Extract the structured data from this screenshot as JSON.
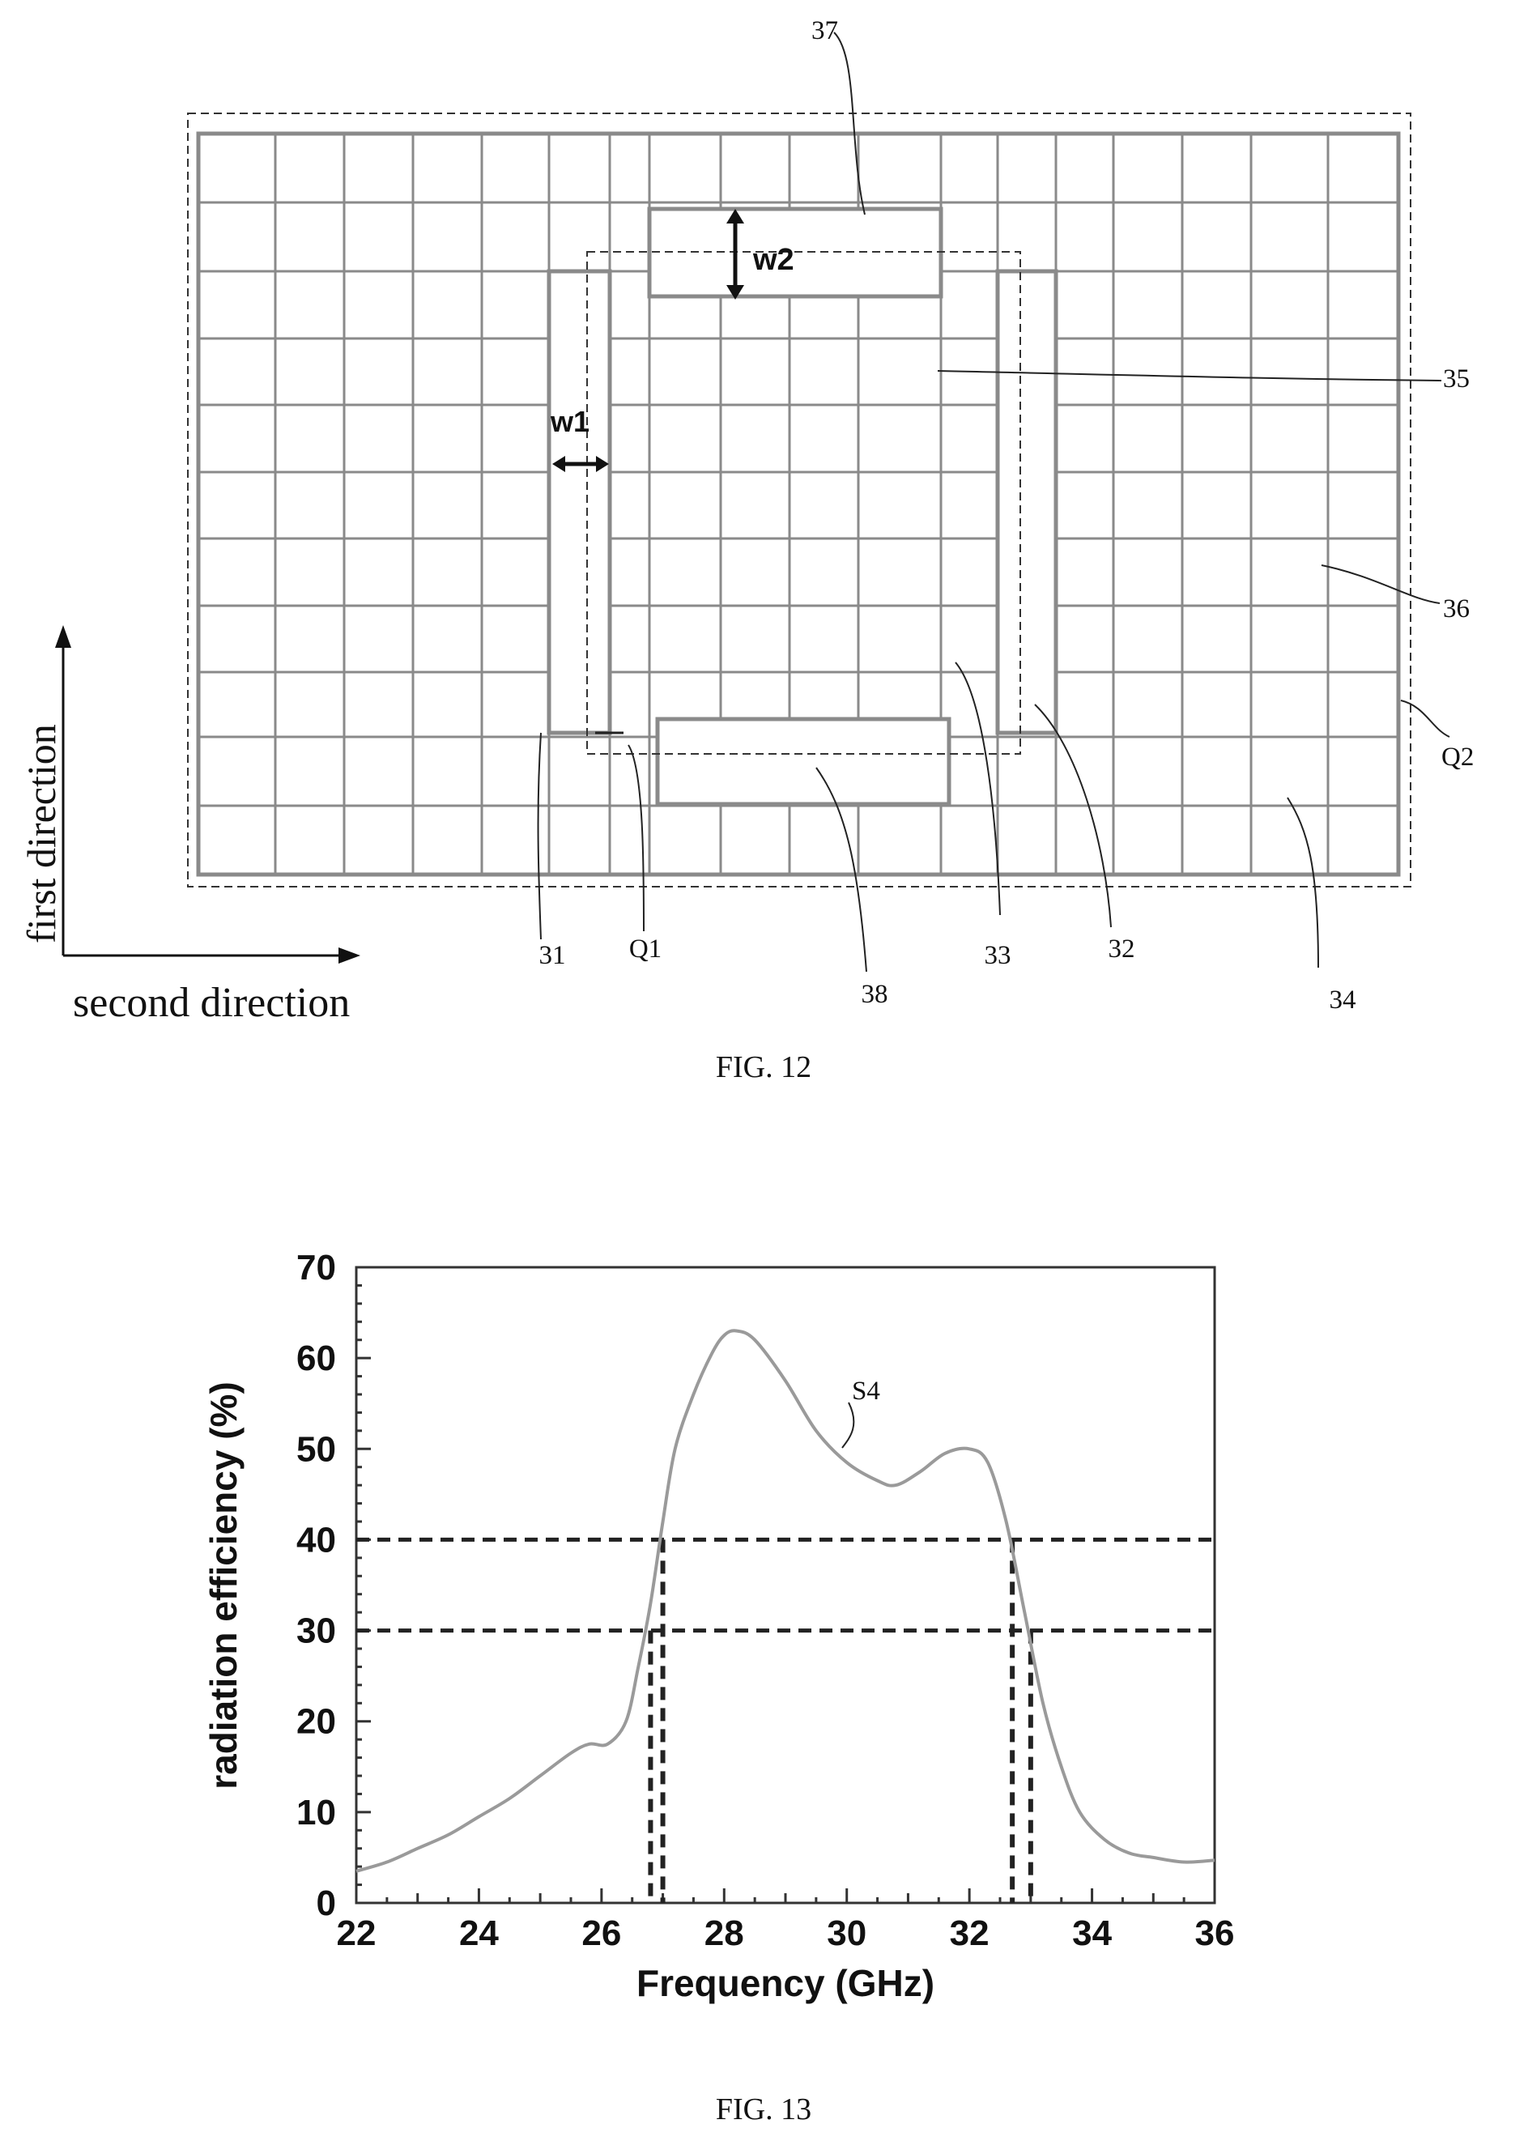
{
  "figure12": {
    "caption": "FIG. 12",
    "axes": {
      "vertical": "first direction",
      "horizontal": "second direction"
    },
    "dimensions": {
      "w1": "w1",
      "w2": "w2"
    },
    "callouts": {
      "c37": "37",
      "c35": "35",
      "c36": "36",
      "q2": "Q2",
      "c31": "31",
      "q1": "Q1",
      "c38": "38",
      "c33": "33",
      "c32": "32",
      "c34": "34"
    }
  },
  "figure13": {
    "caption": "FIG. 13",
    "series_callout": "S4"
  },
  "chart_data": {
    "type": "line",
    "title": "",
    "xlabel": "Frequency (GHz)",
    "ylabel": "radiation efficiency (%)",
    "xlim": [
      22,
      36
    ],
    "ylim": [
      0,
      70
    ],
    "xticks": [
      22,
      24,
      26,
      28,
      30,
      32,
      34,
      36
    ],
    "yticks": [
      0,
      10,
      20,
      30,
      40,
      50,
      60,
      70
    ],
    "grid": false,
    "series": [
      {
        "name": "S4",
        "x": [
          22,
          22.5,
          23,
          23.5,
          24,
          24.5,
          25,
          25.5,
          25.8,
          26.1,
          26.4,
          26.6,
          26.8,
          27.0,
          27.2,
          27.5,
          27.8,
          28.0,
          28.2,
          28.5,
          29.0,
          29.5,
          30.0,
          30.5,
          30.8,
          31.2,
          31.6,
          32.0,
          32.3,
          32.6,
          32.9,
          33.2,
          33.5,
          33.8,
          34.2,
          34.6,
          35.0,
          35.5,
          36.0
        ],
        "y": [
          3.5,
          4.5,
          6,
          7.5,
          9.5,
          11.5,
          14,
          16.5,
          17.5,
          17.5,
          20,
          26,
          33,
          42,
          50,
          56,
          60.5,
          62.5,
          63,
          62,
          57.5,
          52,
          48.5,
          46.5,
          46,
          47.5,
          49.5,
          50,
          48.5,
          42,
          32,
          22,
          15,
          10,
          7,
          5.5,
          5,
          4.5,
          4.7
        ]
      }
    ],
    "reference_lines": {
      "horizontal": [
        40,
        30
      ],
      "vertical": [
        26.8,
        27.0,
        32.7,
        33.0
      ]
    }
  }
}
